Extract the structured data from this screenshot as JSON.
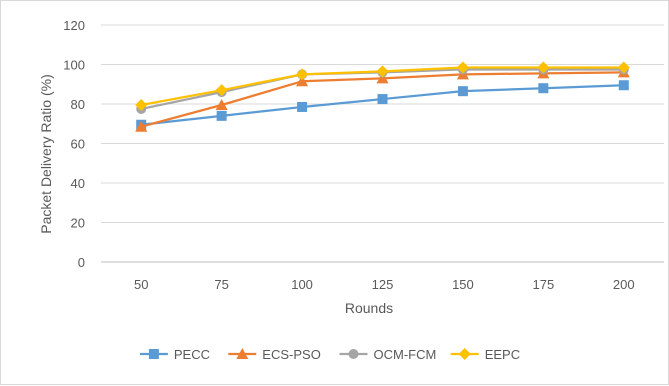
{
  "chart_data": {
    "type": "line",
    "title": "",
    "xlabel": "Rounds",
    "ylabel": "Packet Delivery Ratio (%)",
    "categories": [
      "50",
      "75",
      "100",
      "125",
      "150",
      "175",
      "200"
    ],
    "ylim": [
      0,
      120
    ],
    "yticks": [
      "0",
      "20",
      "40",
      "60",
      "80",
      "100",
      "120"
    ],
    "grid": "horizontal",
    "legend_position": "bottom",
    "series": [
      {
        "name": "PECC",
        "color": "#5b9bd5",
        "marker": "square",
        "values": [
          69.5,
          74,
          78.5,
          82.5,
          86.5,
          88,
          89.5
        ]
      },
      {
        "name": "ECS-PSO",
        "color": "#ed7d31",
        "marker": "triangle",
        "values": [
          68.5,
          79.5,
          91.5,
          93,
          95,
          95.5,
          96
        ]
      },
      {
        "name": "OCM-FCM",
        "color": "#a5a5a5",
        "marker": "circle",
        "values": [
          77.5,
          86,
          95,
          96,
          97.5,
          97.5,
          97.5
        ]
      },
      {
        "name": "EEPC",
        "color": "#ffc000",
        "marker": "diamond",
        "values": [
          79.5,
          87,
          95,
          96.5,
          98.5,
          98.5,
          98.5
        ]
      }
    ]
  }
}
